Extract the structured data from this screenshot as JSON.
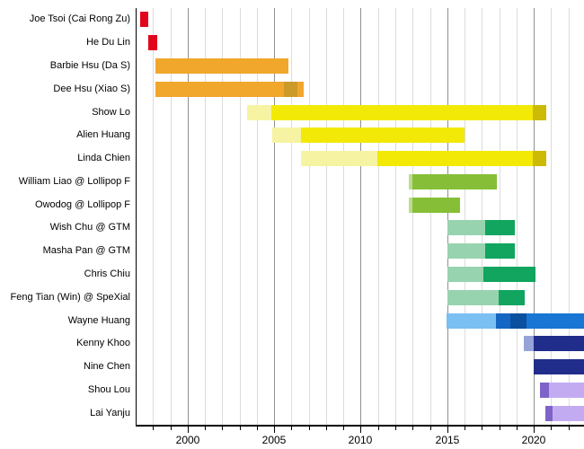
{
  "chart_data": {
    "type": "bar",
    "variant": "gantt-timeline",
    "title": "",
    "xlabel": "",
    "ylabel": "",
    "x_axis": {
      "min": 1997.0,
      "max": 2022.9,
      "major_ticks": [
        2000,
        2005,
        2010,
        2015,
        2020
      ],
      "minor_tick_years_start": 1998,
      "minor_tick_years_end": 2022,
      "grid": true,
      "legend": "none"
    },
    "palette": {
      "red": "#e1051d",
      "orange": "#f1a62c",
      "orange_dark": "#cc9a28",
      "yellow_light": "#f6f3a2",
      "yellow": "#f3e907",
      "olive": "#ccba06",
      "green_light": "#bcdc90",
      "green": "#86bf37",
      "teal_light": "#98d3b0",
      "teal": "#11a55f",
      "sky": "#7ac0f2",
      "blue_med": "#1565c2",
      "blue_dark": "#0b509e",
      "blue": "#1976d4",
      "navy": "#212d8b",
      "slate_light": "#97a3d8",
      "purple_dark": "#7e63c8",
      "purple_light": "#c3abf2"
    },
    "rows": [
      {
        "label": "Joe Tsoi (Cai Rong Zu)",
        "segments": [
          {
            "from": 1997.25,
            "to": 1997.7,
            "color": "red"
          }
        ]
      },
      {
        "label": "He Du Lin",
        "segments": [
          {
            "from": 1997.75,
            "to": 1998.25,
            "color": "red"
          }
        ]
      },
      {
        "label": "Barbie Hsu (Da S)",
        "segments": [
          {
            "from": 1998.15,
            "to": 2005.85,
            "color": "orange"
          }
        ]
      },
      {
        "label": "Dee Hsu (Xiao S)",
        "segments": [
          {
            "from": 1998.15,
            "to": 2005.55,
            "color": "orange"
          },
          {
            "from": 2005.55,
            "to": 2006.35,
            "color": "orange_dark"
          },
          {
            "from": 2006.35,
            "to": 2006.7,
            "color": "orange"
          }
        ]
      },
      {
        "label": "Show Lo",
        "segments": [
          {
            "from": 2003.45,
            "to": 2004.85,
            "color": "yellow_light"
          },
          {
            "from": 2004.85,
            "to": 2019.95,
            "color": "yellow"
          },
          {
            "from": 2019.95,
            "to": 2020.75,
            "color": "olive"
          }
        ]
      },
      {
        "label": "Alien Huang",
        "segments": [
          {
            "from": 2004.9,
            "to": 2006.55,
            "color": "yellow_light"
          },
          {
            "from": 2006.55,
            "to": 2016.0,
            "color": "yellow"
          }
        ]
      },
      {
        "label": "Linda Chien",
        "segments": [
          {
            "from": 2006.55,
            "to": 2010.95,
            "color": "yellow_light"
          },
          {
            "from": 2010.95,
            "to": 2019.95,
            "color": "yellow"
          },
          {
            "from": 2019.95,
            "to": 2020.75,
            "color": "olive"
          }
        ]
      },
      {
        "label": "William Liao @ Lollipop F",
        "segments": [
          {
            "from": 2012.8,
            "to": 2013.0,
            "color": "green_light"
          },
          {
            "from": 2013.0,
            "to": 2017.9,
            "color": "green"
          }
        ]
      },
      {
        "label": "Owodog @ Lollipop F",
        "segments": [
          {
            "from": 2012.8,
            "to": 2013.0,
            "color": "green_light"
          },
          {
            "from": 2013.0,
            "to": 2015.75,
            "color": "green"
          }
        ]
      },
      {
        "label": "Wish Chu @ GTM",
        "segments": [
          {
            "from": 2015.0,
            "to": 2017.2,
            "color": "teal_light"
          },
          {
            "from": 2017.2,
            "to": 2018.9,
            "color": "teal"
          }
        ]
      },
      {
        "label": "Masha Pan @ GTM",
        "segments": [
          {
            "from": 2015.0,
            "to": 2017.2,
            "color": "teal_light"
          },
          {
            "from": 2017.2,
            "to": 2018.9,
            "color": "teal"
          }
        ]
      },
      {
        "label": "Chris Chiu",
        "segments": [
          {
            "from": 2015.0,
            "to": 2017.1,
            "color": "teal_light"
          },
          {
            "from": 2017.1,
            "to": 2020.1,
            "color": "teal"
          }
        ]
      },
      {
        "label": "Feng Tian (Win) @ SpeXial",
        "segments": [
          {
            "from": 2015.0,
            "to": 2017.95,
            "color": "teal_light"
          },
          {
            "from": 2017.95,
            "to": 2019.45,
            "color": "teal"
          }
        ]
      },
      {
        "label": "Wayne Huang",
        "segments": [
          {
            "from": 2014.95,
            "to": 2017.8,
            "color": "sky"
          },
          {
            "from": 2017.8,
            "to": 2018.65,
            "color": "blue_med"
          },
          {
            "from": 2018.65,
            "to": 2019.6,
            "color": "blue_dark"
          },
          {
            "from": 2019.6,
            "to": 2022.9,
            "color": "blue"
          }
        ]
      },
      {
        "label": "Kenny Khoo",
        "segments": [
          {
            "from": 2019.4,
            "to": 2020.0,
            "color": "slate_light"
          },
          {
            "from": 2020.0,
            "to": 2022.9,
            "color": "navy"
          }
        ]
      },
      {
        "label": "Nine Chen",
        "segments": [
          {
            "from": 2020.0,
            "to": 2022.9,
            "color": "navy"
          }
        ]
      },
      {
        "label": "Shou Lou",
        "segments": [
          {
            "from": 2020.35,
            "to": 2020.9,
            "color": "purple_dark"
          },
          {
            "from": 2020.9,
            "to": 2022.9,
            "color": "purple_light"
          }
        ]
      },
      {
        "label": "Lai Yanju",
        "segments": [
          {
            "from": 2020.65,
            "to": 2021.1,
            "color": "purple_dark"
          },
          {
            "from": 2021.1,
            "to": 2022.9,
            "color": "purple_light"
          }
        ]
      }
    ]
  },
  "layout_colors": {
    "background": "#ffffff",
    "grid_minor": "#dcdcdc",
    "grid_major": "#909090",
    "axis": "#000000",
    "text": "#000000"
  }
}
